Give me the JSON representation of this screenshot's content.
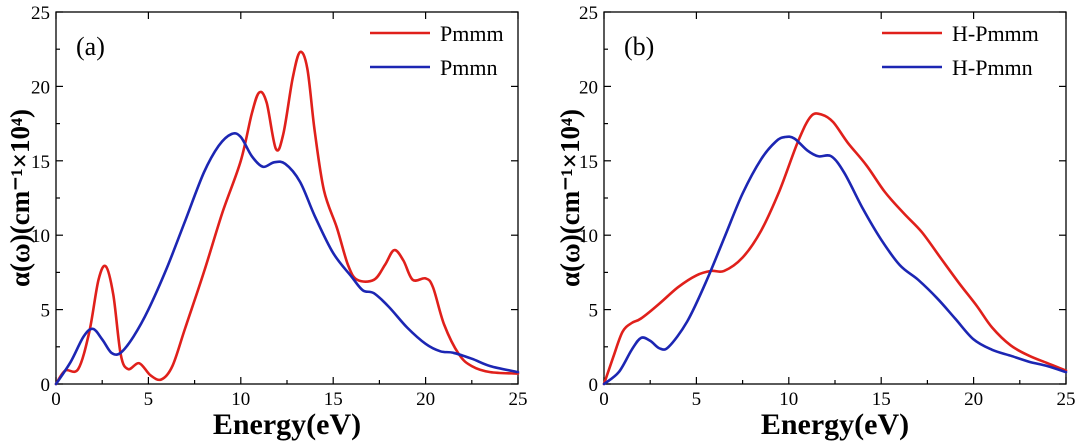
{
  "colors": {
    "red": "#e0201b",
    "blue": "#1c26b3"
  },
  "chart_data": [
    {
      "type": "line",
      "panel_label": "(a)",
      "xlabel": "Energy(eV)",
      "ylabel": "α(ω)(cm⁻¹×10⁴)",
      "xlim": [
        0,
        25
      ],
      "ylim": [
        0,
        25
      ],
      "xticks": [
        0,
        5,
        10,
        15,
        20,
        25
      ],
      "yticks": [
        0,
        5,
        10,
        15,
        20,
        25
      ],
      "legend_position": "top-right",
      "series": [
        {
          "name": "Pmmm",
          "color": "#e0201b",
          "points": [
            [
              0,
              0
            ],
            [
              0.5,
              0.9
            ],
            [
              1.2,
              1.0
            ],
            [
              1.8,
              3.5
            ],
            [
              2.3,
              7.0
            ],
            [
              2.7,
              7.9
            ],
            [
              3.1,
              6.0
            ],
            [
              3.5,
              2.0
            ],
            [
              3.9,
              1.0
            ],
            [
              4.5,
              1.4
            ],
            [
              5.1,
              0.6
            ],
            [
              5.7,
              0.3
            ],
            [
              6.3,
              1.2
            ],
            [
              7.0,
              3.8
            ],
            [
              8.0,
              7.5
            ],
            [
              9.0,
              11.5
            ],
            [
              10.0,
              15.0
            ],
            [
              10.6,
              18.2
            ],
            [
              11.0,
              19.6
            ],
            [
              11.4,
              18.9
            ],
            [
              11.9,
              15.8
            ],
            [
              12.3,
              16.8
            ],
            [
              12.8,
              20.5
            ],
            [
              13.2,
              22.3
            ],
            [
              13.6,
              21.2
            ],
            [
              14.0,
              17.0
            ],
            [
              14.5,
              13.0
            ],
            [
              15.2,
              10.5
            ],
            [
              15.8,
              8.0
            ],
            [
              16.3,
              7.0
            ],
            [
              17.2,
              7.0
            ],
            [
              17.8,
              8.0
            ],
            [
              18.3,
              9.0
            ],
            [
              18.8,
              8.3
            ],
            [
              19.3,
              7.0
            ],
            [
              20.0,
              7.1
            ],
            [
              20.4,
              6.5
            ],
            [
              21.0,
              4.0
            ],
            [
              21.8,
              2.0
            ],
            [
              22.5,
              1.2
            ],
            [
              23.5,
              0.8
            ],
            [
              25,
              0.7
            ]
          ]
        },
        {
          "name": "Pmmn",
          "color": "#1c26b3",
          "points": [
            [
              0,
              0
            ],
            [
              0.8,
              1.5
            ],
            [
              1.5,
              3.2
            ],
            [
              2.0,
              3.7
            ],
            [
              2.5,
              3.0
            ],
            [
              3.0,
              2.1
            ],
            [
              3.5,
              2.1
            ],
            [
              4.2,
              3.2
            ],
            [
              5.0,
              5.0
            ],
            [
              6.0,
              7.8
            ],
            [
              7.0,
              11.0
            ],
            [
              8.0,
              14.2
            ],
            [
              8.8,
              16.0
            ],
            [
              9.5,
              16.8
            ],
            [
              10.0,
              16.6
            ],
            [
              10.6,
              15.3
            ],
            [
              11.2,
              14.6
            ],
            [
              11.8,
              14.9
            ],
            [
              12.4,
              14.8
            ],
            [
              13.2,
              13.6
            ],
            [
              14.0,
              11.3
            ],
            [
              15.0,
              8.8
            ],
            [
              16.0,
              7.2
            ],
            [
              16.6,
              6.3
            ],
            [
              17.2,
              6.1
            ],
            [
              18.0,
              5.2
            ],
            [
              19.0,
              3.8
            ],
            [
              20.0,
              2.7
            ],
            [
              20.8,
              2.2
            ],
            [
              21.5,
              2.1
            ],
            [
              22.5,
              1.7
            ],
            [
              23.5,
              1.2
            ],
            [
              25,
              0.8
            ]
          ]
        }
      ]
    },
    {
      "type": "line",
      "panel_label": "(b)",
      "xlabel": "Energy(eV)",
      "ylabel": "α(ω)(cm⁻¹×10⁴)",
      "xlim": [
        0,
        25
      ],
      "ylim": [
        0,
        25
      ],
      "xticks": [
        0,
        5,
        10,
        15,
        20,
        25
      ],
      "yticks": [
        0,
        5,
        10,
        15,
        20,
        25
      ],
      "legend_position": "top-right",
      "series": [
        {
          "name": "H-Pmmm",
          "color": "#e0201b",
          "points": [
            [
              0,
              0
            ],
            [
              0.5,
              1.8
            ],
            [
              1.0,
              3.5
            ],
            [
              1.5,
              4.1
            ],
            [
              2.0,
              4.4
            ],
            [
              3.0,
              5.4
            ],
            [
              4.0,
              6.5
            ],
            [
              5.0,
              7.3
            ],
            [
              5.8,
              7.6
            ],
            [
              6.5,
              7.6
            ],
            [
              7.5,
              8.5
            ],
            [
              8.5,
              10.3
            ],
            [
              9.5,
              13.0
            ],
            [
              10.5,
              16.3
            ],
            [
              11.2,
              18.0
            ],
            [
              11.8,
              18.1
            ],
            [
              12.4,
              17.6
            ],
            [
              13.2,
              16.2
            ],
            [
              14.2,
              14.7
            ],
            [
              15.2,
              12.9
            ],
            [
              16.2,
              11.5
            ],
            [
              17.2,
              10.2
            ],
            [
              18.2,
              8.5
            ],
            [
              19.2,
              6.8
            ],
            [
              20.2,
              5.2
            ],
            [
              21.0,
              3.8
            ],
            [
              22.0,
              2.6
            ],
            [
              23.0,
              1.9
            ],
            [
              24.0,
              1.4
            ],
            [
              25,
              0.9
            ]
          ]
        },
        {
          "name": "H-Pmmn",
          "color": "#1c26b3",
          "points": [
            [
              0,
              0
            ],
            [
              0.8,
              0.8
            ],
            [
              1.5,
              2.3
            ],
            [
              2.0,
              3.1
            ],
            [
              2.5,
              2.9
            ],
            [
              3.0,
              2.4
            ],
            [
              3.5,
              2.5
            ],
            [
              4.5,
              4.2
            ],
            [
              5.5,
              6.8
            ],
            [
              6.5,
              9.8
            ],
            [
              7.5,
              12.8
            ],
            [
              8.5,
              15.1
            ],
            [
              9.3,
              16.3
            ],
            [
              9.8,
              16.6
            ],
            [
              10.3,
              16.5
            ],
            [
              11.0,
              15.7
            ],
            [
              11.6,
              15.3
            ],
            [
              12.3,
              15.3
            ],
            [
              13.0,
              14.2
            ],
            [
              14.0,
              11.8
            ],
            [
              15.0,
              9.7
            ],
            [
              16.0,
              8.0
            ],
            [
              17.0,
              7.0
            ],
            [
              18.0,
              5.8
            ],
            [
              19.0,
              4.4
            ],
            [
              20.0,
              3.0
            ],
            [
              21.0,
              2.3
            ],
            [
              22.0,
              1.9
            ],
            [
              23.0,
              1.5
            ],
            [
              24.0,
              1.2
            ],
            [
              25,
              0.8
            ]
          ]
        }
      ]
    }
  ]
}
